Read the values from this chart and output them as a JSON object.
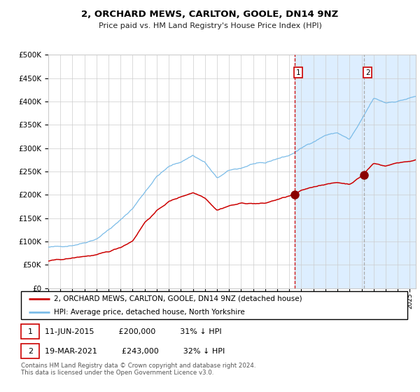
{
  "title": "2, ORCHARD MEWS, CARLTON, GOOLE, DN14 9NZ",
  "subtitle": "Price paid vs. HM Land Registry's House Price Index (HPI)",
  "legend_line1": "2, ORCHARD MEWS, CARLTON, GOOLE, DN14 9NZ (detached house)",
  "legend_line2": "HPI: Average price, detached house, North Yorkshire",
  "footnote": "Contains HM Land Registry data © Crown copyright and database right 2024.\nThis data is licensed under the Open Government Licence v3.0.",
  "marker1_date_num": 2015.44,
  "marker2_date_num": 2021.21,
  "marker1_price": 200000,
  "marker2_price": 243000,
  "xmin": 1995.0,
  "xmax": 2025.5,
  "ymin": 0,
  "ymax": 500000,
  "yticks": [
    0,
    50000,
    100000,
    150000,
    200000,
    250000,
    300000,
    350000,
    400000,
    450000,
    500000
  ],
  "hpi_color": "#7bbce8",
  "price_color": "#cc0000",
  "shade_color": "#ddeeff",
  "vline1_color": "#cc0000",
  "vline2_color": "#aaaaaa",
  "grid_color": "#cccccc",
  "marker_dot_color": "#8b0000",
  "label_box_color": "#cc0000"
}
